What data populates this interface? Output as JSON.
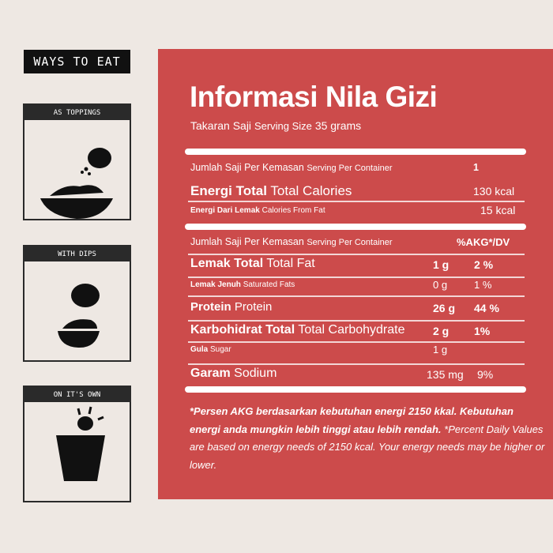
{
  "sidebar": {
    "heading": "WAYS TO EAT",
    "boxes": [
      {
        "label": "AS TOPPINGS",
        "icon": "bowl-topping-icon"
      },
      {
        "label": "WITH DIPS",
        "icon": "dip-icon"
      },
      {
        "label": "ON IT'S OWN",
        "icon": "cup-snack-icon"
      }
    ]
  },
  "panel": {
    "title": "Informasi Nila Gizi",
    "serving_id": "Takaran Saji",
    "serving_en": "Serving Size",
    "serving_value": "35 grams",
    "rows1": [
      {
        "id": "Jumlah Saji Per Kemasan",
        "en": "Serving Per Container",
        "value": "1"
      },
      {
        "id": "Energi Total",
        "en": "Total Calories",
        "value": "130 kcal"
      },
      {
        "id": "Energi Dari Lemak",
        "en": "Calories From Fat",
        "value": "15 kcal"
      }
    ],
    "header2": {
      "id": "Jumlah Saji Per Kemasan",
      "en": "Serving Per Container",
      "dv": "%AKG*/DV"
    },
    "rows2": [
      {
        "id": "Lemak Total",
        "en": "Total Fat",
        "amount": "1 g",
        "dv": "2 %"
      },
      {
        "id": "Lemak Jenuh",
        "en": "Saturated Fats",
        "amount": "0 g",
        "dv": "1 %"
      },
      {
        "id": "Protein",
        "en": "Protein",
        "amount": "26 g",
        "dv": "44 %"
      },
      {
        "id": "Karbohidrat Total",
        "en": "Total Carbohydrate",
        "amount": "2 g",
        "dv": "1%"
      },
      {
        "id": "Gula",
        "en": "Sugar",
        "amount": "1 g",
        "dv": ""
      },
      {
        "id": "Garam",
        "en": "Sodium",
        "amount": "135 mg",
        "dv": "9%"
      }
    ],
    "footnote_id": "*Persen AKG berdasarkan kebutuhan energi 2150 kkal. Kebutuhan energi anda mungkin lebih tinggi atau lebih rendah.",
    "footnote_en": "*Percent Daily Values are based on energy needs of 2150 kcal. Your energy needs may be higher or lower."
  },
  "colors": {
    "panel": "#cc4b4b",
    "background": "#eee8e3",
    "dark": "#2a2a2a"
  }
}
